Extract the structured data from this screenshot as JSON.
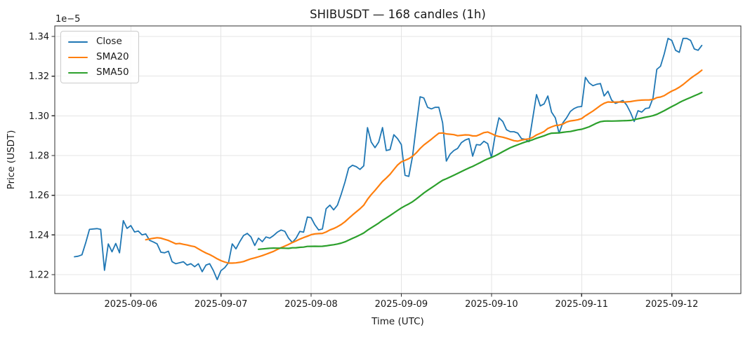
{
  "chart_data": {
    "type": "line",
    "title": "SHIBUSDT — 168 candles (1h)",
    "xlabel": "Time (UTC)",
    "ylabel": "Price (USDT)",
    "y_offset_text": "1e−5",
    "grid": true,
    "legend_position": "upper left",
    "y_ticks": [
      1.22,
      1.24,
      1.26,
      1.28,
      1.3,
      1.32,
      1.34
    ],
    "ylim": [
      1.2105,
      1.3453
    ],
    "x_tick_labels": [
      "2025-09-06",
      "2025-09-07",
      "2025-09-08",
      "2025-09-09",
      "2025-09-10",
      "2025-09-11",
      "2025-09-12"
    ],
    "x_tick_hour_indices": [
      15,
      39,
      63,
      87,
      111,
      135,
      159
    ],
    "candle_count": 168,
    "interval": "1h",
    "series": [
      {
        "name": "Close",
        "color": "#1f77b4",
        "values": [
          1.229,
          1.2293,
          1.23,
          1.236,
          1.2428,
          1.243,
          1.2432,
          1.2428,
          1.2222,
          1.2355,
          1.2315,
          1.2357,
          1.231,
          1.2472,
          1.2433,
          1.2447,
          1.2415,
          1.242,
          1.24,
          1.2405,
          1.2373,
          1.2365,
          1.2355,
          1.2313,
          1.231,
          1.2318,
          1.2265,
          1.2255,
          1.226,
          1.2265,
          1.2248,
          1.2255,
          1.224,
          1.2255,
          1.2215,
          1.2248,
          1.2255,
          1.222,
          1.2175,
          1.222,
          1.2235,
          1.226,
          1.2355,
          1.233,
          1.2366,
          1.2397,
          1.2408,
          1.239,
          1.2347,
          1.2384,
          1.2366,
          1.239,
          1.2384,
          1.2397,
          1.2414,
          1.2425,
          1.2418,
          1.2384,
          1.2362,
          1.2384,
          1.2418,
          1.2414,
          1.249,
          1.2487,
          1.2451,
          1.2425,
          1.243,
          1.2532,
          1.255,
          1.2526,
          1.255,
          1.2604,
          1.2666,
          1.2737,
          1.2751,
          1.2744,
          1.273,
          1.2748,
          1.2941,
          1.2868,
          1.284,
          1.2868,
          1.2941,
          1.2825,
          1.283,
          1.2905,
          1.2885,
          1.2855,
          1.27,
          1.2695,
          1.2797,
          1.295,
          1.3096,
          1.309,
          1.3043,
          1.3035,
          1.3043,
          1.3043,
          1.2965,
          1.2772,
          1.2807,
          1.2825,
          1.2836,
          1.2865,
          1.2878,
          1.2885,
          1.2797,
          1.2855,
          1.2853,
          1.2872,
          1.286,
          1.279,
          1.2905,
          1.299,
          1.2972,
          1.293,
          1.292,
          1.292,
          1.2913,
          1.2885,
          1.2882,
          1.287,
          1.299,
          1.3107,
          1.305,
          1.306,
          1.31,
          1.3019,
          1.299,
          1.2913,
          1.2965,
          1.299,
          1.3022,
          1.3037,
          1.3045,
          1.3047,
          1.3194,
          1.3166,
          1.3152,
          1.3159,
          1.3163,
          1.31,
          1.3124,
          1.3079,
          1.3063,
          1.307,
          1.3077,
          1.3054,
          1.3017,
          1.2972,
          1.3026,
          1.3019,
          1.3037,
          1.304,
          1.309,
          1.3234,
          1.325,
          1.3312,
          1.339,
          1.338,
          1.333,
          1.332,
          1.339,
          1.339,
          1.338,
          1.3337,
          1.333,
          1.3355
        ]
      },
      {
        "name": "SMA20",
        "color": "#ff7f0e",
        "derived": "sma_of_close",
        "window": 20
      },
      {
        "name": "SMA50",
        "color": "#2ca02c",
        "derived": "sma_of_close",
        "window": 50
      }
    ]
  }
}
